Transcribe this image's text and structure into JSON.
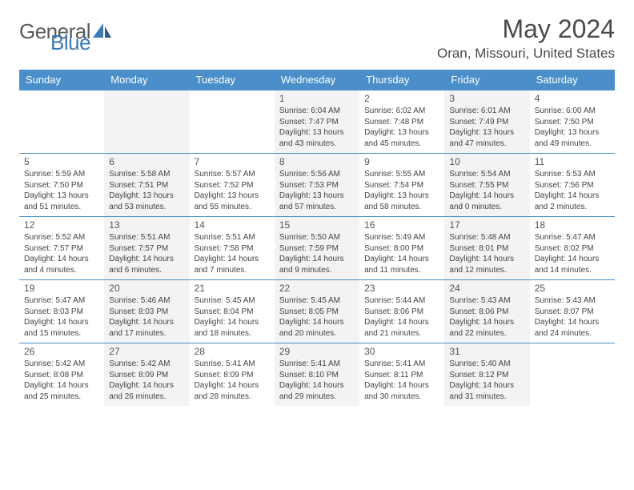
{
  "brand": {
    "part1": "General",
    "part2": "Blue"
  },
  "title": "May 2024",
  "location": "Oran, Missouri, United States",
  "colors": {
    "header_bg": "#4a8fc9",
    "header_text": "#ffffff",
    "border": "#4a8fc9",
    "alt_bg": "#f3f3f3",
    "text": "#444444",
    "title_text": "#4a4a4a",
    "logo_gray": "#5a5a5a",
    "logo_blue": "#3a7ab8"
  },
  "day_names": [
    "Sunday",
    "Monday",
    "Tuesday",
    "Wednesday",
    "Thursday",
    "Friday",
    "Saturday"
  ],
  "weeks": [
    [
      null,
      null,
      null,
      {
        "n": "1",
        "sr": "6:04 AM",
        "ss": "7:47 PM",
        "dl": "13 hours and 43 minutes."
      },
      {
        "n": "2",
        "sr": "6:02 AM",
        "ss": "7:48 PM",
        "dl": "13 hours and 45 minutes."
      },
      {
        "n": "3",
        "sr": "6:01 AM",
        "ss": "7:49 PM",
        "dl": "13 hours and 47 minutes."
      },
      {
        "n": "4",
        "sr": "6:00 AM",
        "ss": "7:50 PM",
        "dl": "13 hours and 49 minutes."
      }
    ],
    [
      {
        "n": "5",
        "sr": "5:59 AM",
        "ss": "7:50 PM",
        "dl": "13 hours and 51 minutes."
      },
      {
        "n": "6",
        "sr": "5:58 AM",
        "ss": "7:51 PM",
        "dl": "13 hours and 53 minutes."
      },
      {
        "n": "7",
        "sr": "5:57 AM",
        "ss": "7:52 PM",
        "dl": "13 hours and 55 minutes."
      },
      {
        "n": "8",
        "sr": "5:56 AM",
        "ss": "7:53 PM",
        "dl": "13 hours and 57 minutes."
      },
      {
        "n": "9",
        "sr": "5:55 AM",
        "ss": "7:54 PM",
        "dl": "13 hours and 58 minutes."
      },
      {
        "n": "10",
        "sr": "5:54 AM",
        "ss": "7:55 PM",
        "dl": "14 hours and 0 minutes."
      },
      {
        "n": "11",
        "sr": "5:53 AM",
        "ss": "7:56 PM",
        "dl": "14 hours and 2 minutes."
      }
    ],
    [
      {
        "n": "12",
        "sr": "5:52 AM",
        "ss": "7:57 PM",
        "dl": "14 hours and 4 minutes."
      },
      {
        "n": "13",
        "sr": "5:51 AM",
        "ss": "7:57 PM",
        "dl": "14 hours and 6 minutes."
      },
      {
        "n": "14",
        "sr": "5:51 AM",
        "ss": "7:58 PM",
        "dl": "14 hours and 7 minutes."
      },
      {
        "n": "15",
        "sr": "5:50 AM",
        "ss": "7:59 PM",
        "dl": "14 hours and 9 minutes."
      },
      {
        "n": "16",
        "sr": "5:49 AM",
        "ss": "8:00 PM",
        "dl": "14 hours and 11 minutes."
      },
      {
        "n": "17",
        "sr": "5:48 AM",
        "ss": "8:01 PM",
        "dl": "14 hours and 12 minutes."
      },
      {
        "n": "18",
        "sr": "5:47 AM",
        "ss": "8:02 PM",
        "dl": "14 hours and 14 minutes."
      }
    ],
    [
      {
        "n": "19",
        "sr": "5:47 AM",
        "ss": "8:03 PM",
        "dl": "14 hours and 15 minutes."
      },
      {
        "n": "20",
        "sr": "5:46 AM",
        "ss": "8:03 PM",
        "dl": "14 hours and 17 minutes."
      },
      {
        "n": "21",
        "sr": "5:45 AM",
        "ss": "8:04 PM",
        "dl": "14 hours and 18 minutes."
      },
      {
        "n": "22",
        "sr": "5:45 AM",
        "ss": "8:05 PM",
        "dl": "14 hours and 20 minutes."
      },
      {
        "n": "23",
        "sr": "5:44 AM",
        "ss": "8:06 PM",
        "dl": "14 hours and 21 minutes."
      },
      {
        "n": "24",
        "sr": "5:43 AM",
        "ss": "8:06 PM",
        "dl": "14 hours and 22 minutes."
      },
      {
        "n": "25",
        "sr": "5:43 AM",
        "ss": "8:07 PM",
        "dl": "14 hours and 24 minutes."
      }
    ],
    [
      {
        "n": "26",
        "sr": "5:42 AM",
        "ss": "8:08 PM",
        "dl": "14 hours and 25 minutes."
      },
      {
        "n": "27",
        "sr": "5:42 AM",
        "ss": "8:09 PM",
        "dl": "14 hours and 26 minutes."
      },
      {
        "n": "28",
        "sr": "5:41 AM",
        "ss": "8:09 PM",
        "dl": "14 hours and 28 minutes."
      },
      {
        "n": "29",
        "sr": "5:41 AM",
        "ss": "8:10 PM",
        "dl": "14 hours and 29 minutes."
      },
      {
        "n": "30",
        "sr": "5:41 AM",
        "ss": "8:11 PM",
        "dl": "14 hours and 30 minutes."
      },
      {
        "n": "31",
        "sr": "5:40 AM",
        "ss": "8:12 PM",
        "dl": "14 hours and 31 minutes."
      },
      null
    ]
  ],
  "labels": {
    "sunrise": "Sunrise:",
    "sunset": "Sunset:",
    "daylight": "Daylight:"
  }
}
